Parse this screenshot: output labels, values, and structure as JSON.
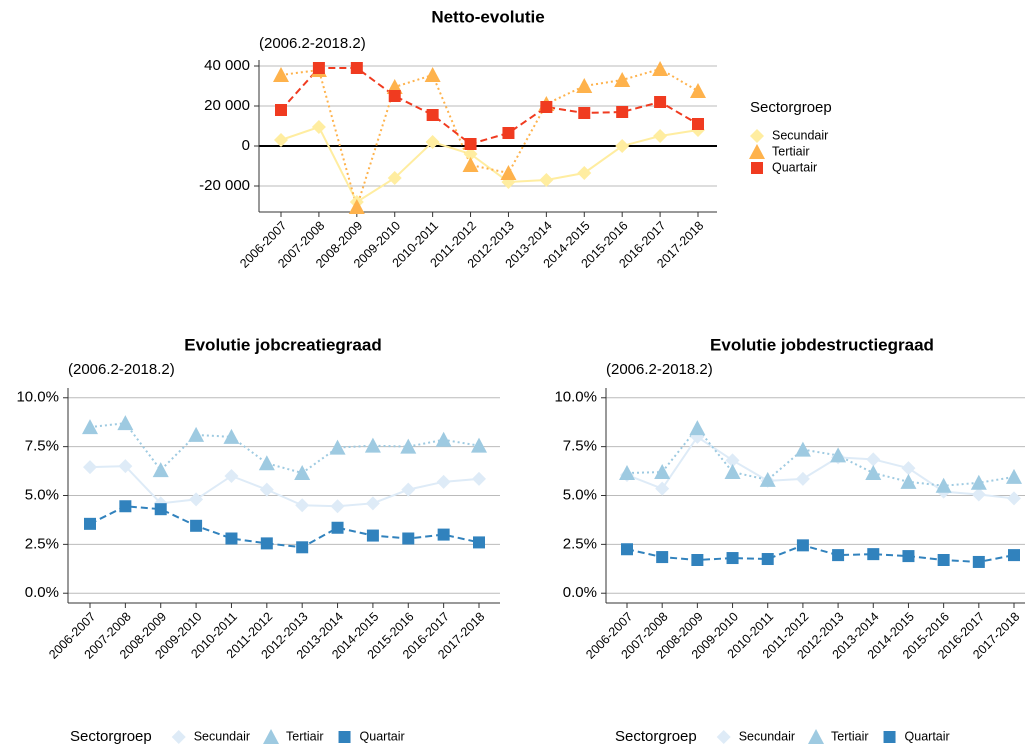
{
  "chart_data": [
    {
      "type": "line",
      "title": "Netto-evolutie",
      "subtitle": "(2006.2-2018.2)",
      "legend_title": "Sectorgroep",
      "legend": "right",
      "grid": true,
      "zero_line": true,
      "categories": [
        "2006-2007",
        "2007-2008",
        "2008-2009",
        "2009-2010",
        "2010-2011",
        "2011-2012",
        "2012-2013",
        "2013-2014",
        "2014-2015",
        "2015-2016",
        "2016-2017",
        "2017-2018"
      ],
      "ylim": [
        -33000,
        43000
      ],
      "yticks": [
        {
          "value": -20000,
          "label": "-20 000"
        },
        0,
        {
          "value": 20000,
          "label": "20 000"
        },
        {
          "value": 40000,
          "label": "40 000"
        }
      ],
      "series": [
        {
          "name": "Secundair",
          "color": "#ffeda0",
          "marker": "diamond",
          "dash": "solid",
          "values": [
            3000,
            9500,
            -28000,
            -16000,
            2000,
            -4000,
            -18000,
            -17000,
            -13500,
            0,
            5000,
            8000
          ]
        },
        {
          "name": "Tertiair",
          "color": "#feb24c",
          "marker": "triangle",
          "dash": "dotted",
          "values": [
            35500,
            38000,
            -30500,
            29500,
            35500,
            -9500,
            -13500,
            21000,
            30000,
            33000,
            38500,
            27500
          ]
        },
        {
          "name": "Quartair",
          "color": "#f03b20",
          "marker": "square",
          "dash": "dashed",
          "values": [
            18000,
            39000,
            39000,
            25000,
            15500,
            1000,
            6500,
            19500,
            16500,
            17000,
            22000,
            11000
          ]
        }
      ]
    },
    {
      "type": "line",
      "title": "Evolutie jobcreatiegraad",
      "subtitle": "(2006.2-2018.2)",
      "legend_title": "Sectorgroep",
      "legend": "bottom",
      "grid": true,
      "zero_line": false,
      "categories": [
        "2006-2007",
        "2007-2008",
        "2008-2009",
        "2009-2010",
        "2010-2011",
        "2011-2012",
        "2012-2013",
        "2013-2014",
        "2014-2015",
        "2015-2016",
        "2016-2017",
        "2017-2018"
      ],
      "ylim": [
        -0.5,
        10.5
      ],
      "yticks": [
        {
          "value": 0,
          "label": "0.0%"
        },
        {
          "value": 2.5,
          "label": "2.5%"
        },
        {
          "value": 5,
          "label": "5.0%"
        },
        {
          "value": 7.5,
          "label": "7.5%"
        },
        {
          "value": 10,
          "label": "10.0%"
        }
      ],
      "series": [
        {
          "name": "Secundair",
          "color": "#deebf7",
          "marker": "diamond",
          "dash": "solid",
          "values": [
            6.45,
            6.5,
            4.6,
            4.8,
            6.0,
            5.3,
            4.5,
            4.45,
            4.6,
            5.3,
            5.7,
            5.85
          ]
        },
        {
          "name": "Tertiair",
          "color": "#9ecae1",
          "marker": "triangle",
          "dash": "dotted",
          "values": [
            8.5,
            8.7,
            6.3,
            8.1,
            8.0,
            6.65,
            6.15,
            7.45,
            7.55,
            7.5,
            7.85,
            7.55
          ]
        },
        {
          "name": "Quartair",
          "color": "#3182bd",
          "marker": "square",
          "dash": "dashed",
          "values": [
            3.55,
            4.45,
            4.3,
            3.45,
            2.8,
            2.55,
            2.35,
            3.35,
            2.95,
            2.8,
            3.0,
            2.6
          ]
        }
      ]
    },
    {
      "type": "line",
      "title": "Evolutie jobdestructiegraad",
      "subtitle": "(2006.2-2018.2)",
      "legend_title": "Sectorgroep",
      "legend": "bottom",
      "grid": true,
      "zero_line": false,
      "categories": [
        "2006-2007",
        "2007-2008",
        "2008-2009",
        "2009-2010",
        "2010-2011",
        "2011-2012",
        "2012-2013",
        "2013-2014",
        "2014-2015",
        "2015-2016",
        "2016-2017",
        "2017-2018"
      ],
      "ylim": [
        -0.5,
        10.5
      ],
      "yticks": [
        {
          "value": 0,
          "label": "0.0%"
        },
        {
          "value": 2.5,
          "label": "2.5%"
        },
        {
          "value": 5,
          "label": "5.0%"
        },
        {
          "value": 7.5,
          "label": "7.5%"
        },
        {
          "value": 10,
          "label": "10.0%"
        }
      ],
      "series": [
        {
          "name": "Secundair",
          "color": "#deebf7",
          "marker": "diamond",
          "dash": "solid",
          "values": [
            6.05,
            5.35,
            8.0,
            6.8,
            5.75,
            5.85,
            6.95,
            6.85,
            6.4,
            5.2,
            5.05,
            4.85
          ]
        },
        {
          "name": "Tertiair",
          "color": "#9ecae1",
          "marker": "triangle",
          "dash": "dotted",
          "values": [
            6.15,
            6.2,
            8.45,
            6.2,
            5.8,
            7.35,
            7.05,
            6.15,
            5.7,
            5.5,
            5.65,
            5.95
          ]
        },
        {
          "name": "Quartair",
          "color": "#3182bd",
          "marker": "square",
          "dash": "dashed",
          "values": [
            2.25,
            1.85,
            1.7,
            1.8,
            1.75,
            2.45,
            1.95,
            2.0,
            1.9,
            1.7,
            1.6,
            1.95
          ]
        }
      ]
    }
  ]
}
